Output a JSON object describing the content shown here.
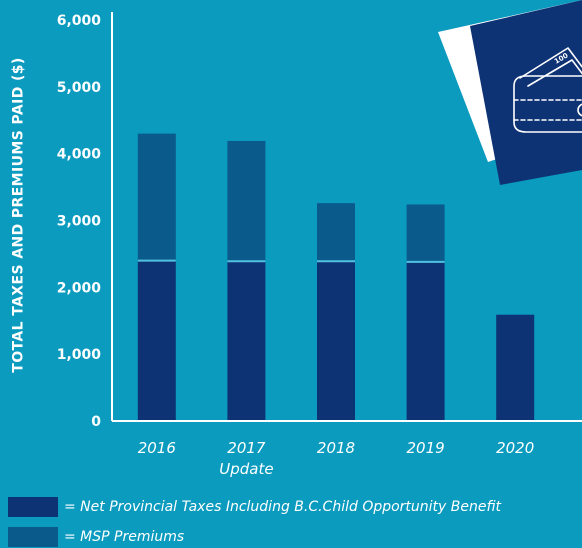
{
  "chart_data": {
    "type": "bar",
    "stacked": true,
    "categories": [
      "2016",
      "2017\nUpdate",
      "2018",
      "2019",
      "2020"
    ],
    "series": [
      {
        "name": "Net Provincial Taxes Including B.C.Child Opportunity Benefit",
        "color": "#0e3375",
        "values": [
          2400,
          2390,
          2390,
          2380,
          1590
        ]
      },
      {
        "name": "MSP Premiums",
        "color": "#0a5a8c",
        "values": [
          1900,
          1800,
          870,
          860,
          0
        ]
      }
    ],
    "ylabel": "TOTAL TAXES AND PREMIUMS PAID ($)",
    "xlabel": "",
    "title": "",
    "ylim": [
      0,
      6000
    ],
    "yticks": [
      "0",
      "1,000",
      "2,000",
      "3,000",
      "4,000",
      "5,000",
      "6,000"
    ],
    "legend": [
      {
        "label": "= Net Provincial Taxes Including B.C.Child Opportunity Benefit",
        "color": "#0e3375"
      },
      {
        "label": "= MSP Premiums",
        "color": "#0a5a8c"
      }
    ],
    "grid": false
  },
  "colors": {
    "background": "#0a9bbf",
    "axis": "#ffffff",
    "text": "#ffffff",
    "illustration_card": "#0e3375"
  },
  "illustration": {
    "icon": "wallet-with-cash-icon"
  }
}
